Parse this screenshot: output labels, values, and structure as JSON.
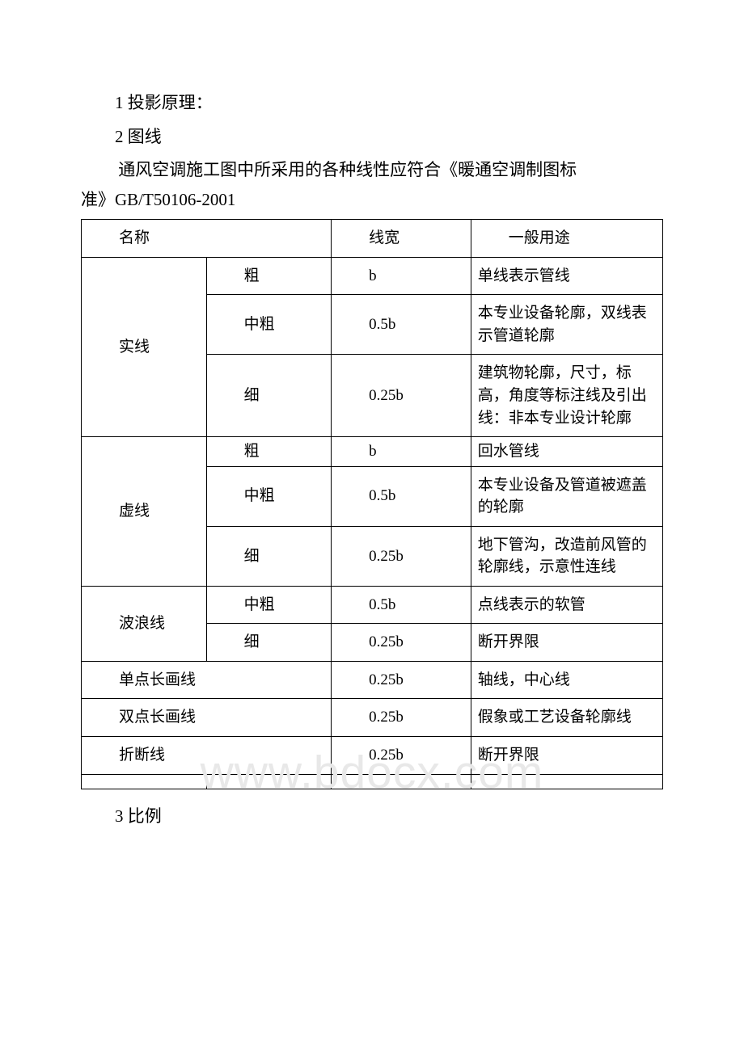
{
  "paragraphs": {
    "p1": "1 投影原理：",
    "p2": "2 图线",
    "intro_l1": " 通风空调施工图中所采用的各种线性应符合《暖通空调制图标",
    "intro_l2": "准》GB/T50106-2001",
    "p3": "3 比例"
  },
  "watermark": "www.bdocx.com",
  "table": {
    "header": {
      "name": "名称",
      "width": "线宽",
      "usage": "一般用途"
    },
    "groups": [
      {
        "name": "实线",
        "rows": [
          {
            "sub": "粗",
            "width": "b",
            "usage": "单线表示管线"
          },
          {
            "sub": "中粗",
            "width": "0.5b",
            "usage": "本专业设备轮廓，双线表示管道轮廓"
          },
          {
            "sub": "细",
            "width": "0.25b",
            "usage": "建筑物轮廓，尺寸，标高，角度等标注线及引出线：非本专业设计轮廓"
          }
        ]
      },
      {
        "name": "虚线",
        "rows": [
          {
            "sub": "粗",
            "width": "b",
            "usage": "回水管线"
          },
          {
            "sub": "中粗",
            "width": "0.5b",
            "usage": "本专业设备及管道被遮盖的轮廓"
          },
          {
            "sub": "细",
            "width": "0.25b",
            "usage": "地下管沟，改造前风管的轮廓线，示意性连线"
          }
        ]
      },
      {
        "name": "波浪线",
        "rows": [
          {
            "sub": "中粗",
            "width": "0.5b",
            "usage": "点线表示的软管"
          },
          {
            "sub": "细",
            "width": "0.25b",
            "usage": "断开界限"
          }
        ]
      }
    ],
    "singles": [
      {
        "name": "单点长画线",
        "width": "0.25b",
        "usage": "轴线，中心线"
      },
      {
        "name": "双点长画线",
        "width": "0.25b",
        "usage": "假象或工艺设备轮廓线"
      },
      {
        "name": "折断线",
        "width": "0.25b",
        "usage": "断开界限"
      }
    ]
  }
}
